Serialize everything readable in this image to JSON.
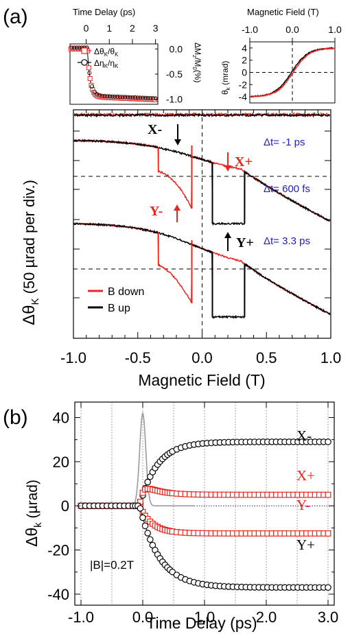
{
  "chart_data": [
    {
      "panel": "(a)",
      "type": "line",
      "xlabel": "Magnetic Field (T)",
      "ylabel": "Δθ",
      "ylabel_sub": "K",
      "ylabel_units": "(50 µrad per div.)",
      "xlim": [
        -1.0,
        1.0
      ],
      "xticks": [
        "-1.0",
        "-0.5",
        "0.0",
        "0.5",
        "1.0"
      ],
      "legend": [
        {
          "name": "B down",
          "color": "#e8251f"
        },
        {
          "name": "B up",
          "color": "#000000"
        }
      ],
      "trace_labels": [
        "Δt= -1 ps",
        "Δt= 600 fs",
        "Δt= 3.3 ps"
      ],
      "annotations": [
        {
          "text": "X-",
          "color": "#000000"
        },
        {
          "text": "X+",
          "color": "#e8251f"
        },
        {
          "text": "Y-",
          "color": "#e8251f"
        },
        {
          "text": "Y+",
          "color": "#000000"
        }
      ],
      "traces": [
        {
          "name": "Δt= -1 ps",
          "flat": true
        },
        {
          "name": "Δt= 600 fs",
          "switch_down_T": [
            -0.34,
            -0.08
          ],
          "switch_up_T": [
            0.08,
            0.33
          ]
        },
        {
          "name": "Δt= 3.3 ps",
          "switch_down_T": [
            -0.34,
            -0.08
          ],
          "switch_up_T": [
            0.08,
            0.33
          ]
        }
      ]
    },
    {
      "panel": "inset-left",
      "type": "scatter",
      "xlabel": "Time Delay (ps)",
      "xticks": [
        "0",
        "1",
        "2",
        "3"
      ],
      "ylabel": "ΔM",
      "ylabel_sub": "z",
      "ylabel_rest": "/M",
      "ylabel_sub2": "0",
      "ylabel_units": "(%)",
      "ylim": [
        -1.1,
        0.1
      ],
      "yticks": [
        "0.0",
        "-0.5",
        "-1.0"
      ],
      "legend": [
        {
          "name": "Δθ",
          "sub": "K",
          "rest": "/θ",
          "sub2": "K",
          "color": "#e8251f",
          "marker": "square"
        },
        {
          "name": "Δη",
          "sub": "K",
          "rest": "/η",
          "sub2": "K",
          "color": "#000000",
          "marker": "circle"
        }
      ],
      "x": [
        -0.6,
        -0.4,
        -0.2,
        0.0,
        0.2,
        0.4,
        0.8,
        1.2,
        1.6,
        2.0,
        2.4,
        2.8
      ],
      "y": [
        0.0,
        0.0,
        -0.05,
        -0.5,
        -0.78,
        -0.85,
        -0.9,
        -0.92,
        -0.94,
        -0.95,
        -0.95,
        -0.96
      ]
    },
    {
      "panel": "inset-right",
      "type": "line",
      "xlabel": "Magnetic Field (T)",
      "xticks": [
        "-1.0",
        "0.0",
        "1.0"
      ],
      "ylabel": "θ",
      "ylabel_sub": "k",
      "ylabel_units": "(mrad)",
      "ylim": [
        -5,
        5
      ],
      "yticks": [
        "4",
        "2",
        "0",
        "-2",
        "-4"
      ],
      "x": [
        -1.0,
        -0.6,
        -0.4,
        -0.2,
        0.0,
        0.2,
        0.4,
        0.6,
        1.0
      ],
      "y": [
        -4.0,
        -3.8,
        -3.2,
        -1.6,
        0.0,
        1.6,
        3.2,
        3.8,
        4.0
      ]
    },
    {
      "panel": "(b)",
      "type": "scatter",
      "xlabel": "Time Delay (ps)",
      "ylabel": "Δθ",
      "ylabel_sub": "k",
      "ylabel_units": "(µrad)",
      "xlim": [
        -1.1,
        3.1
      ],
      "ylim": [
        -45,
        47
      ],
      "xticks": [
        "-1.0",
        "0.0",
        "1.0",
        "2.0",
        "3.0"
      ],
      "xtick_values": [
        -1.0,
        0.0,
        1.0,
        2.0,
        3.0
      ],
      "yticks": [
        "40",
        "20",
        "0",
        "-20",
        "-40"
      ],
      "ytick_values": [
        40,
        20,
        0,
        -20,
        -40
      ],
      "annotation": "|B|=0.2T",
      "series": [
        {
          "name": "X-",
          "color": "#000000",
          "marker": "circle",
          "amplitude": 29,
          "rise": 0.28,
          "overshoot": 0
        },
        {
          "name": "X+",
          "color": "#e8251f",
          "marker": "square",
          "amplitude": 5,
          "rise": 0.06,
          "overshoot": 6
        },
        {
          "name": "Y-",
          "color": "#e8251f",
          "marker": "square",
          "amplitude": -12.5,
          "rise": 0.2,
          "overshoot": 0
        },
        {
          "name": "Y+",
          "color": "#000000",
          "marker": "circle",
          "amplitude": -37,
          "rise": 0.32,
          "overshoot": 0
        }
      ],
      "pump_pulse": {
        "color": "#9a9a9a",
        "center": 0.0,
        "width": 0.07,
        "peak": 42
      }
    }
  ],
  "labels": {
    "panel_a": "(a)",
    "panel_b": "(b)"
  }
}
